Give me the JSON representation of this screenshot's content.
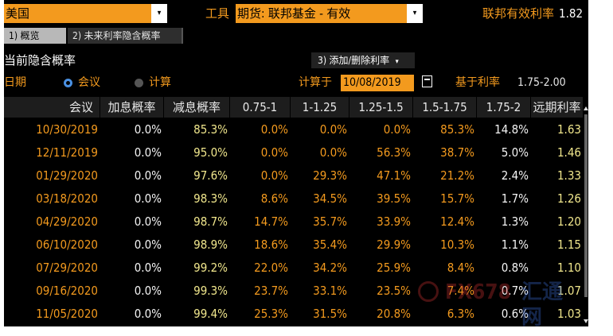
{
  "toolbar": {
    "region_value": "美国",
    "tools_label": "工具",
    "instrument_value": "期货: 联邦基金 - 有效",
    "effective_rate_label": "联邦有效利率",
    "effective_rate_value": "1.82"
  },
  "tabs": [
    {
      "label": "1) 概览"
    },
    {
      "label": "2) 未来利率隐含概率"
    }
  ],
  "section": {
    "title": "当前隐含概率",
    "add_remove_label": "3) 添加/删除利率"
  },
  "options": {
    "date_label": "日期",
    "meeting_label": "会议",
    "calc_label": "计算",
    "calc_on_label": "计算于",
    "calc_date": "10/08/2019",
    "based_on_label": "基于利率",
    "based_on_value": "1.75-2.00"
  },
  "table": {
    "headers": [
      "会议",
      "加息概率",
      "减息概率",
      "0.75-1",
      "1-1.25",
      "1.25-1.5",
      "1.5-1.75",
      "1.75-2",
      "远期利率"
    ],
    "rows": [
      [
        "10/30/2019",
        "0.0%",
        "85.3%",
        "0.0%",
        "0.0%",
        "0.0%",
        "85.3%",
        "14.8%",
        "1.63"
      ],
      [
        "12/11/2019",
        "0.0%",
        "95.0%",
        "0.0%",
        "0.0%",
        "56.3%",
        "38.7%",
        "5.0%",
        "1.46"
      ],
      [
        "01/29/2020",
        "0.0%",
        "97.6%",
        "0.0%",
        "29.3%",
        "47.1%",
        "21.2%",
        "2.4%",
        "1.33"
      ],
      [
        "03/18/2020",
        "0.0%",
        "98.3%",
        "8.6%",
        "34.5%",
        "39.5%",
        "15.7%",
        "1.7%",
        "1.26"
      ],
      [
        "04/29/2020",
        "0.0%",
        "98.7%",
        "14.7%",
        "35.7%",
        "33.9%",
        "12.4%",
        "1.3%",
        "1.20"
      ],
      [
        "06/10/2020",
        "0.0%",
        "98.9%",
        "18.6%",
        "35.4%",
        "29.9%",
        "10.3%",
        "1.1%",
        "1.15"
      ],
      [
        "07/29/2020",
        "0.0%",
        "99.2%",
        "22.0%",
        "34.2%",
        "25.9%",
        "8.4%",
        "0.8%",
        "1.10"
      ],
      [
        "09/16/2020",
        "0.0%",
        "99.3%",
        "23.7%",
        "33.1%",
        "23.5%",
        "7.4%",
        "0.7%",
        "1.07"
      ],
      [
        "11/05/2020",
        "0.0%",
        "99.4%",
        "25.3%",
        "31.5%",
        "20.8%",
        "6.3%",
        "0.6%",
        "1.03"
      ]
    ]
  },
  "watermark": {
    "text": "FX678",
    "cn": "汇通网"
  },
  "colors": {
    "accent_orange": "#f39a1e",
    "value_yellow": "#f0e68c",
    "radio_active": "#4a90e2"
  }
}
